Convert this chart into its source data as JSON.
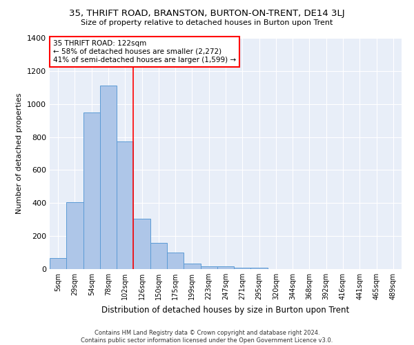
{
  "title": "35, THRIFT ROAD, BRANSTON, BURTON-ON-TRENT, DE14 3LJ",
  "subtitle": "Size of property relative to detached houses in Burton upon Trent",
  "xlabel": "Distribution of detached houses by size in Burton upon Trent",
  "ylabel": "Number of detached properties",
  "bar_values": [
    65,
    405,
    950,
    1110,
    775,
    305,
    160,
    100,
    35,
    18,
    18,
    10,
    10
  ],
  "n_bars": 13,
  "all_categories": [
    "5sqm",
    "29sqm",
    "54sqm",
    "78sqm",
    "102sqm",
    "126sqm",
    "150sqm",
    "175sqm",
    "199sqm",
    "223sqm",
    "247sqm",
    "271sqm",
    "295sqm",
    "320sqm",
    "344sqm",
    "368sqm",
    "392sqm",
    "416sqm",
    "441sqm",
    "465sqm",
    "489sqm"
  ],
  "bar_color": "#aec6e8",
  "bar_edge_color": "#5b9bd5",
  "vline_color": "red",
  "vline_x": 4.5,
  "annotation_text": "35 THRIFT ROAD: 122sqm\n← 58% of detached houses are smaller (2,272)\n41% of semi-detached houses are larger (1,599) →",
  "annotation_box_color": "white",
  "annotation_box_edge_color": "red",
  "ylim": [
    0,
    1400
  ],
  "yticks": [
    0,
    200,
    400,
    600,
    800,
    1000,
    1200,
    1400
  ],
  "background_color": "#e8eef8",
  "footer_line1": "Contains HM Land Registry data © Crown copyright and database right 2024.",
  "footer_line2": "Contains public sector information licensed under the Open Government Licence v3.0.",
  "figsize": [
    6.0,
    5.0
  ],
  "dpi": 100
}
